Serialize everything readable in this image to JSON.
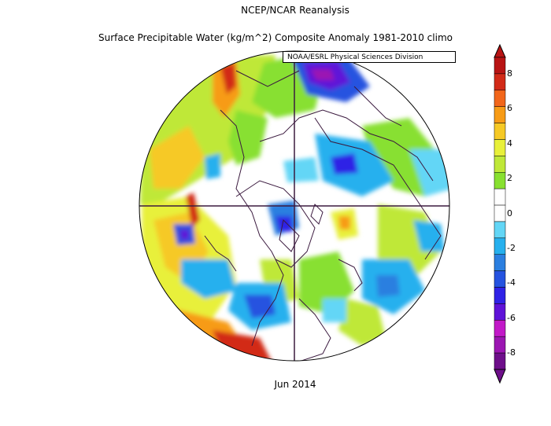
{
  "title": "NCEP/NCAR Reanalysis",
  "subtitle": "Surface Precipitable Water (kg/m^2) Composite Anomaly 1981-2010 climo",
  "credit": "NOAA/ESRL Physical Sciences Division",
  "date_label": "Jun 2014",
  "colorbar": {
    "ticks": [
      "8",
      "6",
      "4",
      "2",
      "0",
      "-2",
      "-4",
      "-6",
      "-8"
    ],
    "levels": [
      "#6e0f8a",
      "#9b16b2",
      "#c219c8",
      "#5f12d8",
      "#2f22e6",
      "#2553e0",
      "#2b7fe0",
      "#26b0ee",
      "#63d6f6",
      "#ffffff",
      "#ffffff",
      "#88e030",
      "#bfe838",
      "#e8f03a",
      "#f6c925",
      "#f79b16",
      "#f2661a",
      "#d22a18",
      "#b81414"
    ]
  },
  "colors": {
    "map_outline": "#3b1a3f",
    "land_edges": "#3b1a3f",
    "background": "#ffffff"
  }
}
